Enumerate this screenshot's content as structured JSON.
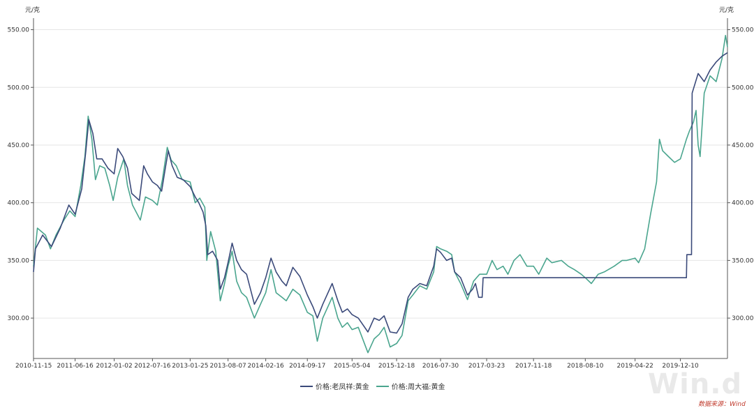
{
  "unit_left": "元/克",
  "unit_right": "元/克",
  "watermark": "Win.d",
  "source_note": "数据来源：Wind",
  "colors": {
    "series1": "#3b4a7a",
    "series2": "#4aa58e",
    "grid": "#e6e6e6",
    "axis": "#555555"
  },
  "chart_data": {
    "type": "line",
    "title": "",
    "xlabel": "",
    "ylabel": "元/克",
    "ylim": [
      265,
      560
    ],
    "y_ticks": [
      "300.00",
      "350.00",
      "400.00",
      "450.00",
      "500.00",
      "550.00"
    ],
    "x_ticks": [
      "2010-11-15",
      "2011-06-16",
      "2012-01-02",
      "2012-07-16",
      "2013-01-25",
      "2013-08-07",
      "2014-02-16",
      "2014-09-17",
      "2015-05-04",
      "2015-12-18",
      "2016-07-30",
      "2017-03-23",
      "2017-11-18",
      "2018-08-10",
      "2019-04-22",
      "2019-12-10"
    ],
    "x_range": [
      "2010-11-15",
      "2020-08-07"
    ],
    "legend_position": "bottom",
    "grid": true,
    "series": [
      {
        "name": "价格:老凤祥:黄金",
        "points": [
          [
            "2010-11-15",
            340
          ],
          [
            "2010-11-25",
            360
          ],
          [
            "2011-01-01",
            372
          ],
          [
            "2011-02-15",
            362
          ],
          [
            "2011-04-01",
            378
          ],
          [
            "2011-05-15",
            398
          ],
          [
            "2011-06-16",
            390
          ],
          [
            "2011-07-20",
            412
          ],
          [
            "2011-08-10",
            445
          ],
          [
            "2011-08-25",
            472
          ],
          [
            "2011-09-15",
            460
          ],
          [
            "2011-10-05",
            438
          ],
          [
            "2011-11-01",
            438
          ],
          [
            "2011-12-01",
            430
          ],
          [
            "2012-01-02",
            425
          ],
          [
            "2012-01-20",
            447
          ],
          [
            "2012-02-15",
            440
          ],
          [
            "2012-03-10",
            430
          ],
          [
            "2012-04-01",
            408
          ],
          [
            "2012-05-10",
            402
          ],
          [
            "2012-06-01",
            432
          ],
          [
            "2012-06-20",
            425
          ],
          [
            "2012-07-16",
            418
          ],
          [
            "2012-08-10",
            415
          ],
          [
            "2012-09-01",
            410
          ],
          [
            "2012-09-20",
            430
          ],
          [
            "2012-10-05",
            445
          ],
          [
            "2012-10-25",
            432
          ],
          [
            "2012-11-20",
            422
          ],
          [
            "2012-12-20",
            420
          ],
          [
            "2013-01-25",
            414
          ],
          [
            "2013-02-20",
            405
          ],
          [
            "2013-03-10",
            400
          ],
          [
            "2013-04-01",
            392
          ],
          [
            "2013-04-15",
            380
          ],
          [
            "2013-04-25",
            355
          ],
          [
            "2013-05-20",
            358
          ],
          [
            "2013-06-15",
            350
          ],
          [
            "2013-06-28",
            325
          ],
          [
            "2013-07-20",
            335
          ],
          [
            "2013-08-07",
            348
          ],
          [
            "2013-08-28",
            365
          ],
          [
            "2013-09-20",
            350
          ],
          [
            "2013-10-15",
            342
          ],
          [
            "2013-11-10",
            338
          ],
          [
            "2013-12-20",
            312
          ],
          [
            "2014-01-20",
            322
          ],
          [
            "2014-02-16",
            335
          ],
          [
            "2014-03-15",
            352
          ],
          [
            "2014-04-10",
            340
          ],
          [
            "2014-05-10",
            332
          ],
          [
            "2014-06-01",
            328
          ],
          [
            "2014-07-05",
            344
          ],
          [
            "2014-08-10",
            336
          ],
          [
            "2014-09-17",
            320
          ],
          [
            "2014-10-15",
            310
          ],
          [
            "2014-11-07",
            300
          ],
          [
            "2014-12-05",
            312
          ],
          [
            "2015-01-22",
            330
          ],
          [
            "2015-02-20",
            315
          ],
          [
            "2015-03-15",
            305
          ],
          [
            "2015-04-10",
            308
          ],
          [
            "2015-05-04",
            303
          ],
          [
            "2015-06-05",
            300
          ],
          [
            "2015-07-24",
            288
          ],
          [
            "2015-08-25",
            300
          ],
          [
            "2015-09-20",
            298
          ],
          [
            "2015-10-15",
            302
          ],
          [
            "2015-11-15",
            288
          ],
          [
            "2015-12-18",
            287
          ],
          [
            "2016-01-15",
            295
          ],
          [
            "2016-02-15",
            318
          ],
          [
            "2016-03-10",
            325
          ],
          [
            "2016-04-15",
            330
          ],
          [
            "2016-05-20",
            328
          ],
          [
            "2016-06-25",
            345
          ],
          [
            "2016-07-10",
            360
          ],
          [
            "2016-07-30",
            357
          ],
          [
            "2016-08-30",
            350
          ],
          [
            "2016-09-25",
            352
          ],
          [
            "2016-10-10",
            340
          ],
          [
            "2016-11-10",
            335
          ],
          [
            "2016-12-15",
            320
          ],
          [
            "2017-01-10",
            325
          ],
          [
            "2017-01-25",
            330
          ],
          [
            "2017-02-10",
            318
          ],
          [
            "2017-02-28",
            318
          ],
          [
            "2017-03-05",
            335
          ],
          [
            "2017-12-01",
            335
          ],
          [
            "2018-08-10",
            335
          ],
          [
            "2019-04-22",
            335
          ],
          [
            "2019-12-10",
            335
          ],
          [
            "2020-01-10",
            335
          ],
          [
            "2020-01-12",
            355
          ],
          [
            "2020-02-05",
            355
          ],
          [
            "2020-02-08",
            495
          ],
          [
            "2020-03-10",
            512
          ],
          [
            "2020-04-10",
            505
          ],
          [
            "2020-05-10",
            515
          ],
          [
            "2020-06-10",
            522
          ],
          [
            "2020-07-10",
            527
          ],
          [
            "2020-08-07",
            530
          ]
        ]
      },
      {
        "name": "价格:周大福:黄金",
        "points": [
          [
            "2010-11-15",
            345
          ],
          [
            "2010-12-05",
            378
          ],
          [
            "2011-01-15",
            372
          ],
          [
            "2011-02-10",
            360
          ],
          [
            "2011-03-10",
            372
          ],
          [
            "2011-04-20",
            385
          ],
          [
            "2011-05-20",
            393
          ],
          [
            "2011-06-16",
            388
          ],
          [
            "2011-07-15",
            415
          ],
          [
            "2011-08-05",
            440
          ],
          [
            "2011-08-22",
            475
          ],
          [
            "2011-09-10",
            455
          ],
          [
            "2011-09-28",
            420
          ],
          [
            "2011-10-20",
            432
          ],
          [
            "2011-11-15",
            430
          ],
          [
            "2011-12-10",
            415
          ],
          [
            "2011-12-28",
            402
          ],
          [
            "2012-01-20",
            422
          ],
          [
            "2012-02-20",
            438
          ],
          [
            "2012-03-10",
            415
          ],
          [
            "2012-04-05",
            398
          ],
          [
            "2012-05-15",
            385
          ],
          [
            "2012-06-10",
            405
          ],
          [
            "2012-07-16",
            402
          ],
          [
            "2012-08-10",
            398
          ],
          [
            "2012-09-05",
            420
          ],
          [
            "2012-09-30",
            448
          ],
          [
            "2012-10-20",
            437
          ],
          [
            "2012-11-15",
            432
          ],
          [
            "2012-12-15",
            420
          ],
          [
            "2013-01-25",
            418
          ],
          [
            "2013-02-20",
            400
          ],
          [
            "2013-03-15",
            404
          ],
          [
            "2013-04-10",
            396
          ],
          [
            "2013-04-20",
            350
          ],
          [
            "2013-05-10",
            375
          ],
          [
            "2013-06-05",
            358
          ],
          [
            "2013-06-28",
            315
          ],
          [
            "2013-07-20",
            330
          ],
          [
            "2013-08-07",
            345
          ],
          [
            "2013-08-28",
            358
          ],
          [
            "2013-09-20",
            332
          ],
          [
            "2013-10-15",
            322
          ],
          [
            "2013-11-10",
            318
          ],
          [
            "2013-12-20",
            300
          ],
          [
            "2014-01-20",
            312
          ],
          [
            "2014-02-16",
            322
          ],
          [
            "2014-03-15",
            342
          ],
          [
            "2014-04-10",
            322
          ],
          [
            "2014-05-10",
            318
          ],
          [
            "2014-06-01",
            315
          ],
          [
            "2014-07-05",
            325
          ],
          [
            "2014-08-10",
            320
          ],
          [
            "2014-09-17",
            305
          ],
          [
            "2014-10-15",
            302
          ],
          [
            "2014-11-07",
            280
          ],
          [
            "2014-12-05",
            300
          ],
          [
            "2015-01-22",
            318
          ],
          [
            "2015-02-20",
            300
          ],
          [
            "2015-03-15",
            292
          ],
          [
            "2015-04-10",
            296
          ],
          [
            "2015-05-04",
            290
          ],
          [
            "2015-06-05",
            292
          ],
          [
            "2015-07-24",
            270
          ],
          [
            "2015-08-25",
            282
          ],
          [
            "2015-09-20",
            286
          ],
          [
            "2015-10-15",
            292
          ],
          [
            "2015-11-15",
            275
          ],
          [
            "2015-12-18",
            278
          ],
          [
            "2016-01-15",
            285
          ],
          [
            "2016-02-15",
            315
          ],
          [
            "2016-03-10",
            320
          ],
          [
            "2016-04-15",
            328
          ],
          [
            "2016-05-20",
            325
          ],
          [
            "2016-06-25",
            340
          ],
          [
            "2016-07-10",
            362
          ],
          [
            "2016-07-30",
            360
          ],
          [
            "2016-08-30",
            358
          ],
          [
            "2016-09-25",
            355
          ],
          [
            "2016-10-10",
            340
          ],
          [
            "2016-11-10",
            330
          ],
          [
            "2016-12-15",
            316
          ],
          [
            "2017-01-15",
            332
          ],
          [
            "2017-02-15",
            338
          ],
          [
            "2017-03-23",
            338
          ],
          [
            "2017-04-20",
            350
          ],
          [
            "2017-05-15",
            342
          ],
          [
            "2017-06-15",
            345
          ],
          [
            "2017-07-10",
            338
          ],
          [
            "2017-08-10",
            350
          ],
          [
            "2017-09-10",
            355
          ],
          [
            "2017-10-15",
            345
          ],
          [
            "2017-11-18",
            345
          ],
          [
            "2017-12-15",
            338
          ],
          [
            "2018-01-25",
            352
          ],
          [
            "2018-02-20",
            348
          ],
          [
            "2018-04-10",
            350
          ],
          [
            "2018-05-15",
            345
          ],
          [
            "2018-06-15",
            342
          ],
          [
            "2018-07-20",
            338
          ],
          [
            "2018-08-10",
            335
          ],
          [
            "2018-09-10",
            330
          ],
          [
            "2018-10-15",
            338
          ],
          [
            "2018-11-15",
            340
          ],
          [
            "2019-01-05",
            345
          ],
          [
            "2019-02-15",
            350
          ],
          [
            "2019-03-10",
            350
          ],
          [
            "2019-04-22",
            352
          ],
          [
            "2019-05-10",
            348
          ],
          [
            "2019-06-10",
            360
          ],
          [
            "2019-06-25",
            375
          ],
          [
            "2019-07-10",
            390
          ],
          [
            "2019-08-10",
            418
          ],
          [
            "2019-08-25",
            455
          ],
          [
            "2019-09-10",
            445
          ],
          [
            "2019-10-10",
            440
          ],
          [
            "2019-11-10",
            435
          ],
          [
            "2019-12-10",
            438
          ],
          [
            "2020-01-10",
            455
          ],
          [
            "2020-01-25",
            462
          ],
          [
            "2020-02-15",
            470
          ],
          [
            "2020-02-28",
            480
          ],
          [
            "2020-03-10",
            450
          ],
          [
            "2020-03-20",
            440
          ],
          [
            "2020-04-10",
            495
          ],
          [
            "2020-05-10",
            510
          ],
          [
            "2020-06-10",
            505
          ],
          [
            "2020-07-10",
            525
          ],
          [
            "2020-07-28",
            545
          ],
          [
            "2020-08-07",
            535
          ]
        ]
      }
    ]
  }
}
